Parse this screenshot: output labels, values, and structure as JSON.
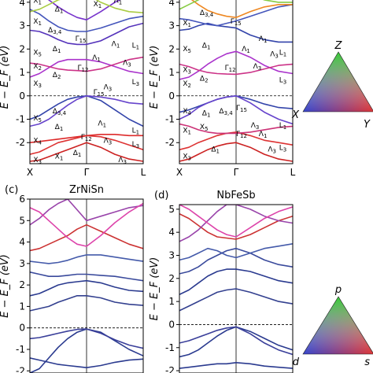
{
  "figure": {
    "y_axis_label": "E − E_F (eV)",
    "panels": [
      {
        "tag": "",
        "title": "",
        "x_ticks": [
          "X",
          "Γ",
          "L"
        ],
        "y_ticks": [
          "-2",
          "-1",
          "0",
          "1",
          "2",
          "3",
          "4"
        ],
        "ylim": [
          -2.9,
          4.5
        ],
        "symmetry_labels": [
          "X1",
          "Δ1",
          "X1",
          "Δ3,4",
          "Γ15",
          "X5",
          "Δ1",
          "X2",
          "Δ2",
          "Γ12",
          "X3",
          "Λ1",
          "Λ3",
          "Λ1",
          "L1",
          "Λ3",
          "L3",
          "Γ15",
          "X5",
          "Δ3,4",
          "X4",
          "Δ1",
          "Λ1",
          "Λ3",
          "L1",
          "X1",
          "Γ12",
          "L3",
          "X3",
          "Δ1",
          "Λ3",
          "X1",
          "Λ1"
        ]
      },
      {
        "tag": "",
        "title": "",
        "x_ticks": [
          "X",
          "Γ",
          "L"
        ],
        "y_ticks": [
          "-2",
          "-1",
          "0",
          "1",
          "2",
          "3",
          "4"
        ],
        "ylim": [
          -2.9,
          4.5
        ],
        "symmetry_labels": [
          "Δ3,4",
          "X1",
          "Γ15",
          "Λ1",
          "Λ3",
          "X5",
          "Δ1",
          "Λ1",
          "L1",
          "X3",
          "Δ2",
          "Λ3",
          "Γ12",
          "X2",
          "L3",
          "X4",
          "Δ1",
          "Δ3,4",
          "Γ15",
          "X1",
          "Λ3",
          "L1",
          "X5",
          "Δ1",
          "Γ12",
          "Λ1",
          "L3",
          "X3",
          "Λ3"
        ]
      },
      {
        "tag": "(c)",
        "title": "ZrNiSn",
        "x_ticks": [],
        "y_ticks": [
          "-2",
          "-1",
          "0",
          "1",
          "2",
          "3",
          "4",
          "5",
          "6"
        ],
        "ylim": [
          -2.1,
          6
        ],
        "symmetry_labels": []
      },
      {
        "tag": "(d)",
        "title": "NbFeSb",
        "x_ticks": [],
        "y_ticks": [
          "-2",
          "-1",
          "0",
          "1",
          "2",
          "3",
          "4",
          "5"
        ],
        "ylim": [
          -2.1,
          5.2
        ],
        "symmetry_labels": []
      }
    ],
    "legend_triangles": [
      {
        "top": "Z",
        "left": "X",
        "right": "Y"
      },
      {
        "top": "p",
        "left": "d",
        "right": "s"
      }
    ]
  },
  "chart_data": [
    {
      "type": "line",
      "title": "",
      "xlabel": "",
      "ylabel": "E − E_F (eV)",
      "x_ticks": [
        "X",
        "Γ",
        "L"
      ],
      "x": [
        0,
        0.167,
        0.333,
        0.5,
        0.667,
        0.833,
        1.0,
        1.25,
        1.5,
        1.75,
        2.0
      ],
      "ylim": [
        -2.9,
        4.5
      ],
      "fermi_level": 0,
      "series": [
        {
          "values": [
            -2.8,
            -2.75,
            -2.6,
            -2.45,
            -2.3,
            -2.15,
            -2.0,
            -2.2,
            -2.5,
            -2.7,
            -2.8
          ],
          "color": "#cc2222"
        },
        {
          "values": [
            -2.5,
            -2.4,
            -2.2,
            -2.0,
            -1.9,
            -1.8,
            -1.7,
            -1.75,
            -1.9,
            -2.1,
            -2.3
          ],
          "color": "#dd3333"
        },
        {
          "values": [
            -2.0,
            -1.95,
            -1.9,
            -1.85,
            -1.8,
            -1.75,
            -1.7,
            -1.65,
            -1.65,
            -1.7,
            -1.7
          ],
          "color": "#dd2a2a"
        },
        {
          "values": [
            -1.0,
            -0.85,
            -0.6,
            -0.35,
            -0.15,
            -0.05,
            0.0,
            -0.2,
            -0.6,
            -1.0,
            -1.3
          ],
          "color": "#3344aa"
        },
        {
          "values": [
            -1.3,
            -1.2,
            -1.0,
            -0.7,
            -0.4,
            -0.15,
            0.0,
            -0.05,
            -0.15,
            -0.3,
            -0.35
          ],
          "color": "#6644cc"
        },
        {
          "values": [
            0.8,
            0.95,
            1.2,
            1.45,
            1.55,
            1.55,
            1.55,
            1.45,
            1.25,
            1.05,
            0.95
          ],
          "color": "#aa33cc"
        },
        {
          "values": [
            1.4,
            1.35,
            1.25,
            1.15,
            1.1,
            1.08,
            1.05,
            1.15,
            1.35,
            1.55,
            1.65
          ],
          "color": "#cc3388"
        },
        {
          "values": [
            2.8,
            2.75,
            2.6,
            2.4,
            2.25,
            2.2,
            2.2,
            2.35,
            2.65,
            2.95,
            3.1
          ],
          "color": "#5533bb"
        },
        {
          "values": [
            3.7,
            3.5,
            3.2,
            2.95,
            2.8,
            2.75,
            2.75,
            2.9,
            3.1,
            3.3,
            3.4
          ],
          "color": "#4455bb"
        },
        {
          "values": [
            4.5,
            4.4,
            4.1,
            3.8,
            3.55,
            3.35,
            3.25,
            3.6,
            4.0,
            4.3,
            4.5
          ],
          "color": "#7733cc"
        },
        {
          "values": [
            3.6,
            3.7,
            3.9,
            4.1,
            4.2,
            4.3,
            4.35,
            4.0,
            3.75,
            3.6,
            3.55
          ],
          "color": "#aacc44"
        }
      ]
    },
    {
      "type": "line",
      "title": "",
      "xlabel": "",
      "ylabel": "E − E_F (eV)",
      "x_ticks": [
        "X",
        "Γ",
        "L"
      ],
      "x": [
        0,
        0.167,
        0.333,
        0.5,
        0.667,
        0.833,
        1.0,
        1.25,
        1.5,
        1.75,
        2.0
      ],
      "ylim": [
        -2.9,
        4.5
      ],
      "fermi_level": 0,
      "series": [
        {
          "values": [
            -2.8,
            -2.7,
            -2.5,
            -2.3,
            -2.15,
            -2.05,
            -2.0,
            -2.2,
            -2.5,
            -2.7,
            -2.8
          ],
          "color": "#cc2222"
        },
        {
          "values": [
            -2.3,
            -2.2,
            -2.0,
            -1.85,
            -1.7,
            -1.6,
            -1.55,
            -1.7,
            -1.9,
            -2.0,
            -2.1
          ],
          "color": "#dd3333"
        },
        {
          "values": [
            -1.2,
            -1.3,
            -1.45,
            -1.55,
            -1.6,
            -1.6,
            -1.6,
            -1.55,
            -1.45,
            -1.35,
            -1.3
          ],
          "color": "#cc3377"
        },
        {
          "values": [
            -0.7,
            -0.6,
            -0.45,
            -0.3,
            -0.15,
            -0.05,
            0.0,
            -0.15,
            -0.35,
            -0.5,
            -0.55
          ],
          "color": "#3344aa"
        },
        {
          "values": [
            -1.0,
            -0.8,
            -0.5,
            -0.3,
            -0.15,
            -0.05,
            0.0,
            -0.3,
            -0.7,
            -1.0,
            -1.2
          ],
          "color": "#6644cc"
        },
        {
          "values": [
            0.7,
            0.8,
            1.05,
            1.35,
            1.6,
            1.8,
            1.9,
            1.65,
            1.3,
            1.05,
            0.95
          ],
          "color": "#aa33cc"
        },
        {
          "values": [
            1.35,
            1.25,
            1.1,
            1.0,
            0.95,
            0.93,
            0.92,
            1.0,
            1.15,
            1.3,
            1.35
          ],
          "color": "#cc3388"
        },
        {
          "values": [
            2.8,
            2.85,
            3.0,
            3.1,
            3.0,
            2.95,
            2.9,
            2.6,
            2.4,
            2.3,
            2.3
          ],
          "color": "#3344aa"
        },
        {
          "values": [
            3.3,
            3.25,
            3.15,
            3.05,
            3.0,
            3.1,
            3.2,
            3.4,
            3.6,
            3.8,
            3.9
          ],
          "color": "#4455bb"
        },
        {
          "values": [
            4.5,
            4.2,
            3.9,
            3.65,
            3.5,
            3.4,
            3.35,
            3.6,
            3.8,
            3.9,
            3.9
          ],
          "color": "#ee8822"
        },
        {
          "values": [
            3.7,
            3.9,
            4.1,
            4.3,
            4.5,
            4.6,
            4.6,
            4.3,
            4.1,
            4.0,
            4.0
          ],
          "color": "#88cc44"
        }
      ]
    },
    {
      "type": "line",
      "title": "ZrNiSn",
      "xlabel": "",
      "ylabel": "E − E_F (eV)",
      "x": [
        0,
        0.167,
        0.333,
        0.5,
        0.667,
        0.833,
        1.0,
        1.25,
        1.5,
        1.75,
        2.0
      ],
      "ylim": [
        -2.1,
        6
      ],
      "fermi_level": 0,
      "series": [
        {
          "values": [
            -2.1,
            -1.9,
            -1.4,
            -0.9,
            -0.5,
            -0.2,
            -0.05,
            -0.2,
            -0.6,
            -1.0,
            -1.3
          ],
          "color": "#2a3a8f"
        },
        {
          "values": [
            -0.5,
            -0.45,
            -0.35,
            -0.25,
            -0.15,
            -0.07,
            -0.05,
            -0.25,
            -0.55,
            -0.8,
            -0.95
          ],
          "color": "#3a3f9a"
        },
        {
          "values": [
            -1.4,
            -1.5,
            -1.6,
            -1.7,
            -1.75,
            -1.8,
            -1.85,
            -1.75,
            -1.6,
            -1.5,
            -1.45
          ],
          "color": "#2a3a8f"
        },
        {
          "values": [
            0.8,
            0.9,
            1.0,
            1.2,
            1.35,
            1.5,
            1.5,
            1.4,
            1.2,
            1.1,
            1.05
          ],
          "color": "#33408f"
        },
        {
          "values": [
            1.5,
            1.6,
            1.8,
            2.0,
            2.1,
            2.15,
            2.2,
            2.1,
            1.9,
            1.75,
            1.7
          ],
          "color": "#2a3a8f"
        },
        {
          "values": [
            2.6,
            2.5,
            2.4,
            2.4,
            2.45,
            2.5,
            2.5,
            2.45,
            2.4,
            2.3,
            2.2
          ],
          "color": "#3a4a9c"
        },
        {
          "values": [
            3.1,
            3.05,
            3.0,
            3.05,
            3.15,
            3.3,
            3.4,
            3.4,
            3.3,
            3.2,
            3.1
          ],
          "color": "#445aaa"
        },
        {
          "values": [
            3.6,
            3.7,
            3.9,
            4.1,
            4.3,
            4.6,
            4.8,
            4.5,
            4.2,
            3.9,
            3.7
          ],
          "color": "#cc3333"
        },
        {
          "values": [
            4.8,
            5.1,
            5.5,
            5.8,
            6.0,
            5.5,
            5.0,
            5.2,
            5.4,
            5.6,
            5.7
          ],
          "color": "#9944aa"
        },
        {
          "values": [
            5.6,
            5.4,
            5.0,
            4.6,
            4.2,
            3.9,
            3.8,
            4.3,
            4.9,
            5.4,
            5.8
          ],
          "color": "#dd44aa"
        }
      ]
    },
    {
      "type": "line",
      "title": "NbFeSb",
      "xlabel": "",
      "ylabel": "E − E_F (eV)",
      "x": [
        0,
        0.167,
        0.333,
        0.5,
        0.667,
        0.833,
        1.0,
        1.25,
        1.5,
        1.75,
        2.0
      ],
      "ylim": [
        -2.1,
        5.2
      ],
      "fermi_level": 0,
      "series": [
        {
          "values": [
            -1.4,
            -1.3,
            -1.1,
            -0.8,
            -0.5,
            -0.25,
            -0.1,
            -0.3,
            -0.6,
            -0.9,
            -1.1
          ],
          "color": "#2a3a8f"
        },
        {
          "values": [
            -0.8,
            -0.7,
            -0.55,
            -0.4,
            -0.25,
            -0.15,
            -0.1,
            -0.4,
            -0.8,
            -1.1,
            -1.3
          ],
          "color": "#3a3f9a"
        },
        {
          "values": [
            -1.9,
            -1.85,
            -1.8,
            -1.75,
            -1.7,
            -1.7,
            -1.65,
            -1.7,
            -1.8,
            -1.85,
            -1.9
          ],
          "color": "#2a3a8f"
        },
        {
          "values": [
            0.6,
            0.8,
            1.0,
            1.2,
            1.4,
            1.5,
            1.55,
            1.4,
            1.2,
            1.0,
            0.9
          ],
          "color": "#33408f"
        },
        {
          "values": [
            1.3,
            1.5,
            1.8,
            2.1,
            2.3,
            2.4,
            2.4,
            2.3,
            2.1,
            1.9,
            1.8
          ],
          "color": "#2a3a8f"
        },
        {
          "values": [
            2.2,
            2.3,
            2.5,
            2.8,
            3.0,
            3.2,
            3.3,
            3.1,
            2.8,
            2.6,
            2.5
          ],
          "color": "#3a4a9c"
        },
        {
          "values": [
            2.8,
            2.9,
            3.1,
            3.3,
            3.2,
            3.0,
            2.9,
            3.1,
            3.3,
            3.4,
            3.5
          ],
          "color": "#445aaa"
        },
        {
          "values": [
            4.8,
            4.6,
            4.3,
            4.0,
            3.8,
            3.75,
            3.7,
            3.9,
            4.2,
            4.5,
            4.7
          ],
          "color": "#cc3333"
        },
        {
          "values": [
            3.6,
            3.8,
            4.1,
            4.5,
            4.9,
            5.2,
            5.2,
            5.0,
            4.7,
            4.5,
            4.4
          ],
          "color": "#9944aa"
        },
        {
          "values": [
            5.2,
            5.0,
            4.7,
            4.4,
            4.1,
            3.9,
            3.8,
            4.2,
            4.6,
            4.9,
            5.1
          ],
          "color": "#dd44aa"
        }
      ]
    }
  ]
}
